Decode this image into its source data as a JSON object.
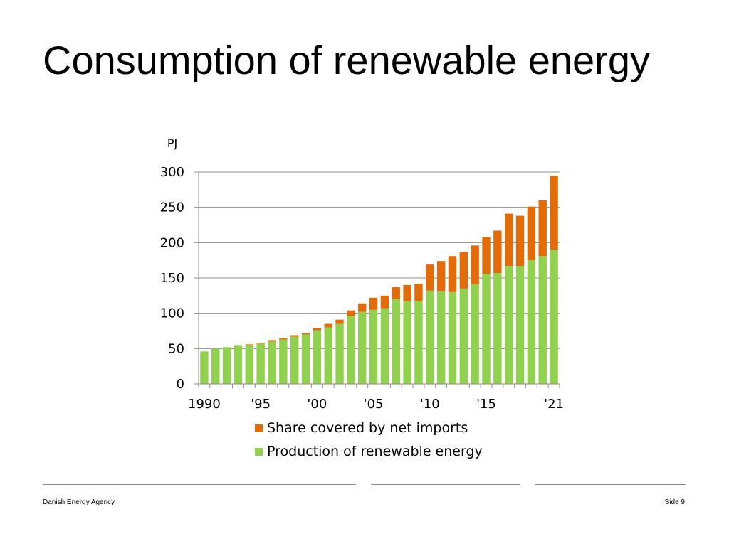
{
  "slide": {
    "title": "Consumption of renewable energy"
  },
  "footer": {
    "organization": "Danish Energy Agency",
    "page_label": "Side 9"
  },
  "colors": {
    "production": "#92d050",
    "imports": "#e36c0a",
    "grid": "#8c8c8c",
    "axis": "#8c8c8c"
  },
  "chart_data": {
    "type": "bar",
    "stacked": true,
    "title": "",
    "xlabel": "",
    "ylabel": "PJ",
    "ylim": [
      0,
      300
    ],
    "yticks": [
      0,
      50,
      100,
      150,
      200,
      250,
      300
    ],
    "grid": true,
    "legend_position": "bottom",
    "categories": [
      "1990",
      "1991",
      "1992",
      "1993",
      "1994",
      "1995",
      "1996",
      "1997",
      "1998",
      "1999",
      "2000",
      "2001",
      "2002",
      "2003",
      "2004",
      "2005",
      "2006",
      "2007",
      "2008",
      "2009",
      "2010",
      "2011",
      "2012",
      "2013",
      "2014",
      "2015",
      "2016",
      "2017",
      "2018",
      "2019",
      "2020",
      "2021"
    ],
    "xtick_labels": [
      {
        "index": 0,
        "label": "1990"
      },
      {
        "index": 5,
        "label": "'95"
      },
      {
        "index": 10,
        "label": "'00"
      },
      {
        "index": 15,
        "label": "'05"
      },
      {
        "index": 20,
        "label": "'10"
      },
      {
        "index": 25,
        "label": "'15"
      },
      {
        "index": 31,
        "label": "'21"
      }
    ],
    "series": [
      {
        "name": "Production of renewable energy",
        "color_key": "production",
        "values": [
          46,
          50,
          52,
          55,
          55,
          57,
          60,
          63,
          67,
          70,
          76,
          80,
          85,
          96,
          102,
          105,
          107,
          120,
          117,
          117,
          132,
          131,
          130,
          135,
          141,
          156,
          157,
          167,
          167,
          175,
          181,
          190
        ]
      },
      {
        "name": "Share covered by net imports",
        "color_key": "imports",
        "values": [
          0,
          0,
          0,
          0,
          1,
          1,
          2,
          2,
          2,
          2,
          3,
          5,
          6,
          8,
          12,
          17,
          18,
          17,
          23,
          25,
          37,
          43,
          51,
          52,
          55,
          52,
          60,
          74,
          71,
          76,
          79,
          105
        ]
      }
    ],
    "legend_entries": [
      {
        "label": "Share covered by net imports",
        "color_key": "imports"
      },
      {
        "label": "Production of renewable energy",
        "color_key": "production"
      }
    ]
  }
}
